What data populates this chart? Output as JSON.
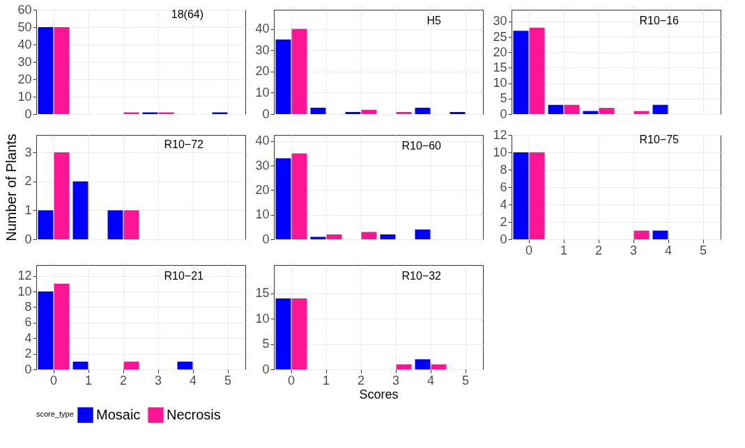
{
  "chart_data": [
    {
      "type": "bar",
      "title": "18(64)",
      "categories": [
        "0",
        "1",
        "2",
        "3",
        "4",
        "5"
      ],
      "series": [
        {
          "name": "Mosaic",
          "color": "#0000ff",
          "values": [
            50,
            null,
            null,
            1,
            null,
            1
          ]
        },
        {
          "name": "Necrosis",
          "color": "#ff1493",
          "values": [
            50,
            null,
            1,
            1,
            null,
            null
          ]
        }
      ],
      "ylim": [
        0,
        60
      ],
      "yticks": [
        0,
        10,
        20,
        30,
        40,
        50,
        60
      ],
      "grid": true,
      "tick_labels": "y",
      "legend": "bottom",
      "legend_title": "score_type"
    },
    {
      "type": "bar",
      "title": "H5",
      "categories": [
        "0",
        "1",
        "2",
        "3",
        "4",
        "5"
      ],
      "series": [
        {
          "color": "#0000ff",
          "values": [
            35,
            3,
            1,
            null,
            3,
            1
          ]
        },
        {
          "color": "#ff1493",
          "values": [
            40,
            null,
            2,
            1,
            null,
            null
          ]
        }
      ],
      "ylim": [
        0,
        49
      ],
      "yticks": [
        0,
        10,
        20,
        30,
        40
      ],
      "grid": true,
      "tick_labels": "y"
    },
    {
      "type": "bar",
      "title": "R10−16",
      "categories": [
        "0",
        "1",
        "2",
        "3",
        "4",
        "5"
      ],
      "series": [
        {
          "color": "#0000ff",
          "values": [
            27,
            3,
            1,
            null,
            3,
            null
          ]
        },
        {
          "color": "#ff1493",
          "values": [
            28,
            3,
            2,
            1,
            null,
            null
          ]
        }
      ],
      "ylim": [
        0,
        33.8
      ],
      "yticks": [
        0,
        5,
        10,
        15,
        20,
        25,
        30
      ],
      "grid": true,
      "tick_labels": "y"
    },
    {
      "type": "bar",
      "title": "R10−72",
      "categories": [
        "0",
        "1",
        "2",
        "3",
        "4",
        "5"
      ],
      "ylabel": "Number of Plants",
      "series": [
        {
          "color": "#0000ff",
          "values": [
            1,
            2,
            1,
            null,
            null,
            null
          ]
        },
        {
          "color": "#ff1493",
          "values": [
            3,
            null,
            1,
            null,
            null,
            null
          ]
        }
      ],
      "ylim": [
        0,
        3.6
      ],
      "yticks": [
        0,
        1,
        2,
        3
      ],
      "grid": true,
      "tick_labels": "y"
    },
    {
      "type": "bar",
      "title": "R10−60",
      "categories": [
        "0",
        "1",
        "2",
        "3",
        "4",
        "5"
      ],
      "series": [
        {
          "color": "#0000ff",
          "values": [
            33,
            1,
            null,
            2,
            4,
            null
          ]
        },
        {
          "color": "#ff1493",
          "values": [
            35,
            2,
            3,
            null,
            null,
            null
          ]
        }
      ],
      "ylim": [
        0,
        42.5
      ],
      "yticks": [
        0,
        10,
        20,
        30,
        40
      ],
      "grid": true,
      "tick_labels": "y"
    },
    {
      "type": "bar",
      "title": "R10−75",
      "categories": [
        "0",
        "1",
        "2",
        "3",
        "4",
        "5"
      ],
      "series": [
        {
          "color": "#0000ff",
          "values": [
            10,
            null,
            null,
            null,
            1,
            null
          ]
        },
        {
          "color": "#ff1493",
          "values": [
            10,
            null,
            null,
            1,
            null,
            null
          ]
        }
      ],
      "ylim": [
        0,
        12
      ],
      "yticks": [
        0,
        2,
        4,
        6,
        8,
        10,
        12
      ],
      "grid": true
    },
    {
      "type": "bar",
      "title": "R10−21",
      "categories": [
        "0",
        "1",
        "2",
        "3",
        "4",
        "5"
      ],
      "series": [
        {
          "color": "#0000ff",
          "values": [
            10,
            1,
            null,
            null,
            1,
            null
          ]
        },
        {
          "color": "#ff1493",
          "values": [
            11,
            null,
            1,
            null,
            null,
            null
          ]
        }
      ],
      "ylim": [
        0,
        13.4
      ],
      "yticks": [
        0,
        2,
        4,
        6,
        8,
        10,
        12
      ],
      "grid": true
    },
    {
      "type": "bar",
      "title": "R10−32",
      "categories": [
        "0",
        "1",
        "2",
        "3",
        "4",
        "5"
      ],
      "xlabel": "Scores",
      "series": [
        {
          "color": "#0000ff",
          "values": [
            14,
            null,
            null,
            null,
            2,
            null
          ]
        },
        {
          "color": "#ff1493",
          "values": [
            14,
            null,
            null,
            1,
            1,
            null
          ]
        }
      ],
      "ylim": [
        0,
        20.6
      ],
      "yticks": [
        0,
        5,
        10,
        15
      ],
      "grid": true
    }
  ]
}
